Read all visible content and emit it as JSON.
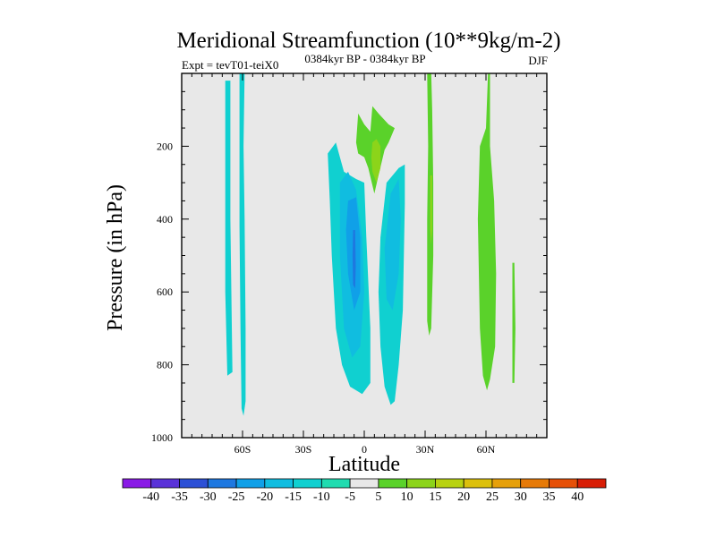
{
  "chart_data": {
    "type": "heatmap",
    "title": "Meridional Streamfunction (10**9kg/m-2)",
    "subtitle_left": "Expt = tevT01-teiX0",
    "subtitle_center": "0384kyr BP - 0384kyr BP",
    "subtitle_right": "DJF",
    "xlabel": "Latitude",
    "ylabel": "Pressure (in hPa)",
    "xlim": [
      -90,
      90
    ],
    "ylim": [
      1000,
      0
    ],
    "x_ticks": [
      {
        "value": -60,
        "label": "60S"
      },
      {
        "value": -30,
        "label": "30S"
      },
      {
        "value": 0,
        "label": "0"
      },
      {
        "value": 30,
        "label": "30N"
      },
      {
        "value": 60,
        "label": "60N"
      }
    ],
    "y_ticks": [
      {
        "value": 200,
        "label": "200"
      },
      {
        "value": 400,
        "label": "400"
      },
      {
        "value": 600,
        "label": "600"
      },
      {
        "value": 800,
        "label": "800"
      },
      {
        "value": 1000,
        "label": "1000"
      }
    ],
    "background_color": "#e8e8e8",
    "colorbar": {
      "labels": [
        "-40",
        "-35",
        "-30",
        "-25",
        "-20",
        "-15",
        "-10",
        "-5",
        "5",
        "10",
        "15",
        "20",
        "25",
        "30",
        "35",
        "40"
      ],
      "colors": [
        "#8a1ae6",
        "#5a32d8",
        "#2c50d6",
        "#1e78e0",
        "#10a0e8",
        "#10bde0",
        "#10d0d0",
        "#20dcb0",
        "#e8e8e8",
        "#5ad22a",
        "#8cd41a",
        "#b8d210",
        "#dcc00c",
        "#e6a00a",
        "#e67a08",
        "#e65008",
        "#d81e06"
      ]
    },
    "regions": [
      {
        "name": "neg-63S-strip",
        "level": -10,
        "color": "#10d0d0",
        "points": [
          [
            -68.5,
            20
          ],
          [
            -66,
            20
          ],
          [
            -66,
            400
          ],
          [
            -65,
            820
          ],
          [
            -67.5,
            830
          ],
          [
            -68.5,
            600
          ]
        ]
      },
      {
        "name": "neg-58S-strip",
        "level": -10,
        "color": "#10d0d0",
        "points": [
          [
            -61.5,
            0
          ],
          [
            -59,
            0
          ],
          [
            -59.5,
            200
          ],
          [
            -59,
            400
          ],
          [
            -58.5,
            700
          ],
          [
            -58.5,
            900
          ],
          [
            -59.5,
            940
          ],
          [
            -60.5,
            920
          ],
          [
            -61,
            700
          ],
          [
            -61.5,
            420
          ]
        ]
      },
      {
        "name": "neg-cell-main",
        "level": -10,
        "color": "#10d0d0",
        "points": [
          [
            -18,
            220
          ],
          [
            -14,
            190
          ],
          [
            -10,
            270
          ],
          [
            -4,
            290
          ],
          [
            0,
            300
          ],
          [
            1,
            450
          ],
          [
            3,
            700
          ],
          [
            3,
            850
          ],
          [
            -1,
            880
          ],
          [
            -7,
            860
          ],
          [
            -11,
            800
          ],
          [
            -14,
            700
          ],
          [
            -16,
            500
          ],
          [
            -17,
            350
          ]
        ]
      },
      {
        "name": "neg-cell-main-15",
        "level": -15,
        "color": "#10bde0",
        "points": [
          [
            -12,
            300
          ],
          [
            -8,
            270
          ],
          [
            -4,
            320
          ],
          [
            -1,
            450
          ],
          [
            0,
            600
          ],
          [
            -2,
            750
          ],
          [
            -6,
            780
          ],
          [
            -10,
            700
          ],
          [
            -12,
            500
          ]
        ]
      },
      {
        "name": "neg-cell-main-20",
        "level": -20,
        "color": "#10a0e8",
        "points": [
          [
            -8,
            350
          ],
          [
            -4,
            340
          ],
          [
            -2,
            450
          ],
          [
            -2,
            600
          ],
          [
            -5,
            650
          ],
          [
            -8,
            550
          ],
          [
            -9,
            430
          ]
        ]
      },
      {
        "name": "neg-cell-main-25",
        "level": -25,
        "color": "#1e78e0",
        "points": [
          [
            -5.5,
            430
          ],
          [
            -4.5,
            430
          ],
          [
            -4.2,
            530
          ],
          [
            -4.5,
            590
          ],
          [
            -5.5,
            580
          ],
          [
            -5.8,
            500
          ]
        ]
      },
      {
        "name": "neg-cell-nh",
        "level": -10,
        "color": "#10d0d0",
        "points": [
          [
            11,
            300
          ],
          [
            17,
            260
          ],
          [
            20,
            250
          ],
          [
            20,
            360
          ],
          [
            19,
            650
          ],
          [
            17,
            800
          ],
          [
            15,
            900
          ],
          [
            13,
            910
          ],
          [
            10,
            860
          ],
          [
            8,
            750
          ],
          [
            7,
            600
          ],
          [
            8,
            450
          ]
        ]
      },
      {
        "name": "neg-cell-nh-15",
        "level": -15,
        "color": "#10bde0",
        "points": [
          [
            13,
            330
          ],
          [
            17,
            290
          ],
          [
            18,
            400
          ],
          [
            17,
            550
          ],
          [
            14,
            650
          ],
          [
            11,
            620
          ],
          [
            10,
            480
          ]
        ]
      },
      {
        "name": "pos-upper-cell",
        "level": 5,
        "color": "#5ad22a",
        "points": [
          [
            -4,
            190
          ],
          [
            -3,
            110
          ],
          [
            0,
            140
          ],
          [
            3,
            160
          ],
          [
            4,
            90
          ],
          [
            7,
            110
          ],
          [
            12,
            140
          ],
          [
            15,
            150
          ],
          [
            12,
            190
          ],
          [
            10,
            210
          ],
          [
            7,
            280
          ],
          [
            5,
            330
          ],
          [
            2,
            260
          ],
          [
            0,
            230
          ],
          [
            -3,
            220
          ]
        ]
      },
      {
        "name": "pos-upper-cell-10",
        "level": 10,
        "color": "#8cd41a",
        "points": [
          [
            4,
            190
          ],
          [
            6,
            180
          ],
          [
            8,
            200
          ],
          [
            8,
            260
          ],
          [
            6,
            300
          ],
          [
            4,
            270
          ],
          [
            3.5,
            230
          ]
        ]
      },
      {
        "name": "pos-30N-strip",
        "level": 5,
        "color": "#5ad22a",
        "points": [
          [
            31,
            0
          ],
          [
            33,
            0
          ],
          [
            33.5,
            100
          ],
          [
            34,
            300
          ],
          [
            34,
            500
          ],
          [
            33,
            700
          ],
          [
            32,
            720
          ],
          [
            31,
            680
          ],
          [
            31,
            400
          ],
          [
            31.5,
            200
          ]
        ]
      },
      {
        "name": "pos-30N-strip-10",
        "level": 10,
        "color": "#8cd41a",
        "points": [
          [
            32.5,
            280
          ],
          [
            33.5,
            280
          ],
          [
            33.5,
            430
          ],
          [
            33,
            470
          ],
          [
            32.5,
            430
          ]
        ]
      },
      {
        "name": "pos-60N-strip",
        "level": 5,
        "color": "#5ad22a",
        "points": [
          [
            61,
            0
          ],
          [
            62,
            0
          ],
          [
            62,
            200
          ],
          [
            64,
            350
          ],
          [
            65,
            550
          ],
          [
            64.5,
            750
          ],
          [
            62,
            840
          ],
          [
            60.5,
            870
          ],
          [
            58.5,
            830
          ],
          [
            57,
            700
          ],
          [
            56,
            400
          ],
          [
            57,
            200
          ],
          [
            60,
            150
          ]
        ]
      },
      {
        "name": "pos-73N-strip",
        "level": 5,
        "color": "#5ad22a",
        "points": [
          [
            73,
            520
          ],
          [
            74,
            520
          ],
          [
            74.5,
            700
          ],
          [
            74,
            850
          ],
          [
            73,
            850
          ],
          [
            73,
            700
          ]
        ]
      }
    ]
  }
}
